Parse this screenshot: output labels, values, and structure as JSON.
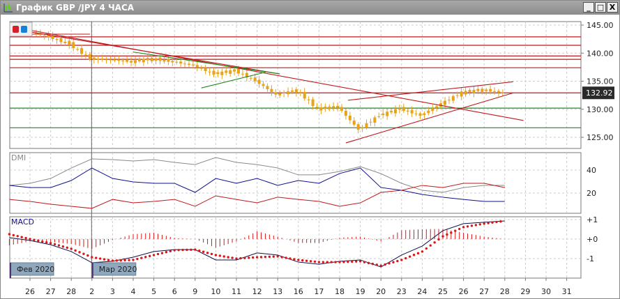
{
  "window": {
    "title": "График GBP /JPY  4 ЧАСА",
    "min": "_",
    "max": "□",
    "close": "X"
  },
  "colors": {
    "candle": "#e8a317",
    "resistance": "#c0181c",
    "support": "#1c8c1c",
    "dmi_adx": "#8a8a8a",
    "dmi_plus": "#10108c",
    "dmi_minus": "#c0181c",
    "macd": "#10104a",
    "signal": "#d81818",
    "price_badge": "#2a2a2a"
  },
  "chart_data": [
    {
      "type": "candlestick",
      "panel": "price",
      "yticks": [
        "145.00",
        "140.00",
        "135.00",
        "130.00",
        "125.00"
      ],
      "ylim": [
        123,
        146
      ],
      "current_price": "132.92",
      "x_ticks": [
        "26",
        "27",
        "28",
        "2",
        "3",
        "4",
        "5",
        "6",
        "9",
        "10",
        "11",
        "12",
        "13",
        "16",
        "17",
        "18",
        "19",
        "20",
        "23",
        "24",
        "25",
        "26",
        "27",
        "28",
        "29",
        "30",
        "31"
      ],
      "month_labels": [
        {
          "label": "Фев 2020",
          "at": -1
        },
        {
          "label": "Мар 2020",
          "at": 3
        }
      ],
      "closes": [
        143.8,
        142.9,
        141.6,
        139.0,
        138.8,
        138.5,
        139.0,
        138.5,
        137.8,
        136.3,
        136.9,
        135.1,
        132.6,
        133.4,
        130.1,
        130.5,
        126.4,
        128.9,
        130.1,
        128.9,
        131.0,
        133.0,
        133.5,
        132.9
      ],
      "horizontal_levels": [
        {
          "price": 142.9,
          "kind": "resistance"
        },
        {
          "price": 141.4,
          "kind": "resistance"
        },
        {
          "price": 139.5,
          "kind": "resistance"
        },
        {
          "price": 138.9,
          "kind": "resistance"
        },
        {
          "price": 137.4,
          "kind": "resistance"
        },
        {
          "price": 132.92,
          "kind": "resistance"
        },
        {
          "price": 130.2,
          "kind": "support"
        },
        {
          "price": 126.7,
          "kind": "support"
        }
      ],
      "trendlines": [
        {
          "from": [
            0,
            144.1
          ],
          "to": [
            23.9,
            128.0
          ],
          "kind": "resistance"
        },
        {
          "from": [
            0,
            143.8
          ],
          "to": [
            12.1,
            136.3
          ],
          "kind": "resistance"
        },
        {
          "from": [
            5,
            140.2
          ],
          "to": [
            12.1,
            136.3
          ],
          "kind": "support"
        },
        {
          "from": [
            8.3,
            133.8
          ],
          "to": [
            11.4,
            136.6
          ],
          "kind": "support"
        },
        {
          "from": [
            15.3,
            124.0
          ],
          "to": [
            23.4,
            132.9
          ],
          "kind": "resistance"
        },
        {
          "from": [
            15.4,
            131.6
          ],
          "to": [
            23.4,
            134.9
          ],
          "kind": "resistance"
        }
      ]
    },
    {
      "type": "line",
      "panel": "DMI",
      "label": "DMI",
      "yticks": [
        "40",
        "20"
      ],
      "ylim": [
        0,
        56
      ],
      "series": [
        {
          "key": "adx",
          "values": [
            26.7,
            28.5,
            32.7,
            41.8,
            49.7,
            49.1,
            47.9,
            49.1,
            46.7,
            44.8,
            50.9,
            46.7,
            44.8,
            41.8,
            35.8,
            35.8,
            38.8,
            43,
            36.9,
            28.5,
            22.4,
            20.6,
            24.8,
            26.7,
            26.7
          ]
        },
        {
          "key": "plus",
          "values": [
            26.7,
            24.8,
            24.8,
            30.9,
            41.8,
            32.7,
            29.7,
            28.5,
            28.5,
            20.6,
            32.7,
            28.5,
            32.7,
            26.7,
            30.9,
            28.5,
            37,
            41.8,
            24.8,
            22.4,
            18.8,
            16.4,
            14.5,
            12.7,
            12.7
          ]
        },
        {
          "key": "minus",
          "values": [
            14.5,
            12.7,
            10.3,
            8.5,
            6.7,
            14.5,
            11.5,
            12.7,
            14.5,
            8.5,
            17.6,
            14.5,
            11.5,
            16.4,
            14.5,
            12.7,
            8.5,
            11.5,
            20.6,
            22.4,
            26.7,
            24.8,
            28.5,
            28.5,
            24.8
          ]
        }
      ]
    },
    {
      "type": "line",
      "panel": "MACD",
      "label": "MACD",
      "yticks": [
        "+1",
        "+0",
        "-1"
      ],
      "ylim": [
        -2.1,
        1.1
      ],
      "series": [
        {
          "key": "macd",
          "values": [
            0.07,
            -0.07,
            -0.29,
            -0.64,
            -1.21,
            -1.14,
            -0.93,
            -0.64,
            -0.54,
            -0.54,
            -1.07,
            -1.07,
            -0.71,
            -0.82,
            -1.18,
            -1.29,
            -1.14,
            -1.07,
            -1.43,
            -0.82,
            -0.36,
            0.43,
            0.79,
            0.86,
            0.93
          ]
        },
        {
          "key": "signal",
          "values": [
            0.25,
            0,
            -0.21,
            -0.5,
            -0.93,
            -1.11,
            -1.07,
            -0.82,
            -0.57,
            -0.54,
            -0.82,
            -1,
            -0.93,
            -0.89,
            -1.07,
            -1.18,
            -1.18,
            -1.14,
            -1.36,
            -1.07,
            -0.64,
            0.14,
            0.61,
            0.79,
            0.93
          ]
        }
      ]
    }
  ]
}
